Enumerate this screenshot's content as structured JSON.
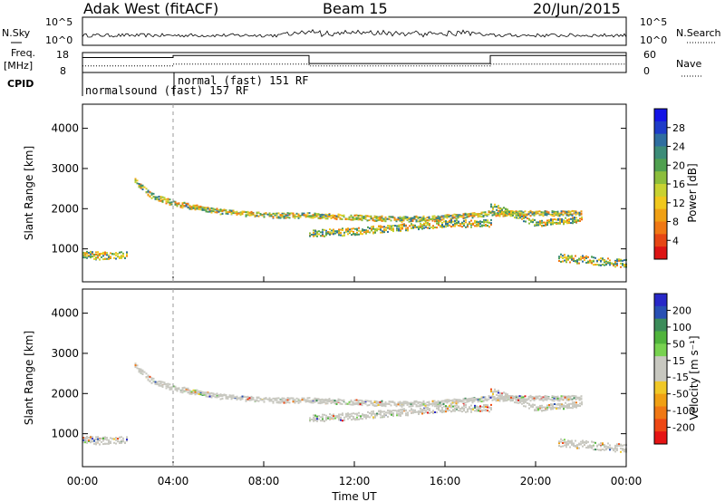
{
  "header": {
    "title": "Adak West (fitACF)",
    "beam": "Beam 15",
    "date": "20/Jun/2015"
  },
  "noise_panel": {
    "left_label": "N.Sky",
    "right_label": "N.Search",
    "left_ticks": [
      "10^5",
      "10^0"
    ],
    "right_ticks": [
      "10^5",
      "10^0"
    ]
  },
  "freq_panel": {
    "left_label_1": "Freq.",
    "left_label_2": "[MHz]",
    "right_label": "Nave",
    "left_ticks": [
      "18",
      "8"
    ],
    "right_ticks": [
      "60",
      "0"
    ]
  },
  "cpid": {
    "label": "CPID",
    "mode_1": "normalsound (fast) 157 RF",
    "mode_2": "normal (fast)  151 RF"
  },
  "power_panel": {
    "ylabel": "Slant Range [km]",
    "colorbar_label": "Power [dB]",
    "colorbar_ticks": [
      "28",
      "24",
      "20",
      "16",
      "12",
      "8",
      "4"
    ],
    "colors": [
      "#1414e6",
      "#1e3cc8",
      "#2f6ea0",
      "#3c8c78",
      "#50a050",
      "#8cbe3c",
      "#c8d232",
      "#f0c81e",
      "#f0a014",
      "#f07814",
      "#e64614",
      "#dc1414"
    ]
  },
  "velocity_panel": {
    "ylabel": "Slant Range [km]",
    "colorbar_label": "Velocity [m s⁻¹]",
    "colorbar_ticks": [
      "200",
      "100",
      "50",
      "15",
      "-15",
      "-50",
      "-100",
      "-200"
    ],
    "colors": [
      "#2828c8",
      "#2850b4",
      "#3c8c5a",
      "#50b43c",
      "#78d250",
      "#c8c8c0",
      "#c8c8c0",
      "#f0c828",
      "#f0a014",
      "#f07814",
      "#ee4814",
      "#e61414"
    ]
  },
  "x_axis": {
    "label": "Time UT",
    "ticks": [
      "00:00",
      "04:00",
      "08:00",
      "12:00",
      "16:00",
      "20:00",
      "00:00"
    ]
  },
  "chart_data": {
    "type": "heatmap",
    "title": "Adak West (fitACF)",
    "subtitle": "Beam 15",
    "date": "20/Jun/2015",
    "xlabel": "Time UT",
    "xlim_hours": [
      0,
      24
    ],
    "ylabel": "Slant Range [km]",
    "ylim_km": [
      180,
      4600
    ],
    "y_ticks": [
      1000,
      2000,
      3000,
      4000
    ],
    "frequency_mhz": [
      {
        "from_hour": 0,
        "to_hour": 4,
        "value": 15.5
      },
      {
        "from_hour": 4,
        "to_hour": 10,
        "value": 16.5
      },
      {
        "from_hour": 10,
        "to_hour": 18,
        "value": 12.5
      },
      {
        "from_hour": 18,
        "to_hour": 24,
        "value": 16.5
      }
    ],
    "nave": [
      {
        "from_hour": 0,
        "to_hour": 4,
        "value": 20
      },
      {
        "from_hour": 4,
        "to_hour": 10,
        "value": 25
      },
      {
        "from_hour": 10,
        "to_hour": 18,
        "value": 20
      },
      {
        "from_hour": 18,
        "to_hour": 24,
        "value": 25
      }
    ],
    "cpid_modes": [
      {
        "from_hour": 0,
        "to_hour": 4,
        "name": "normalsound (fast) 157 RF"
      },
      {
        "from_hour": 4,
        "to_hour": 24,
        "name": "normal (fast)  151 RF"
      }
    ],
    "scatter_bands": [
      {
        "name": "main echo band",
        "points": [
          [
            2.3,
            2700
          ],
          [
            3.0,
            2350
          ],
          [
            4.0,
            2150
          ],
          [
            6.0,
            1950
          ],
          [
            8.0,
            1850
          ],
          [
            10.0,
            1850
          ],
          [
            12.0,
            1800
          ],
          [
            14.0,
            1750
          ],
          [
            16.0,
            1800
          ],
          [
            18.0,
            1900
          ],
          [
            20.0,
            1900
          ],
          [
            22.0,
            1900
          ]
        ],
        "width_km": 130
      },
      {
        "name": "lower echo band",
        "points": [
          [
            10.0,
            1400
          ],
          [
            12.0,
            1450
          ],
          [
            14.0,
            1550
          ],
          [
            16.0,
            1650
          ],
          [
            18.0,
            1650
          ]
        ],
        "width_km": 180
      },
      {
        "name": "second hop band",
        "points": [
          [
            18.0,
            2100
          ],
          [
            20.0,
            1650
          ],
          [
            22.0,
            1750
          ]
        ],
        "width_km": 150
      },
      {
        "name": "ground scatter near range",
        "points": [
          [
            0.0,
            850
          ],
          [
            2.0,
            850
          ]
        ],
        "width_km": 200
      },
      {
        "name": "ground scatter late",
        "points": [
          [
            21.0,
            800
          ],
          [
            24.0,
            650
          ]
        ],
        "width_km": 200
      }
    ],
    "power_db_range": [
      0,
      30
    ],
    "velocity_range": [
      -200,
      200
    ]
  }
}
